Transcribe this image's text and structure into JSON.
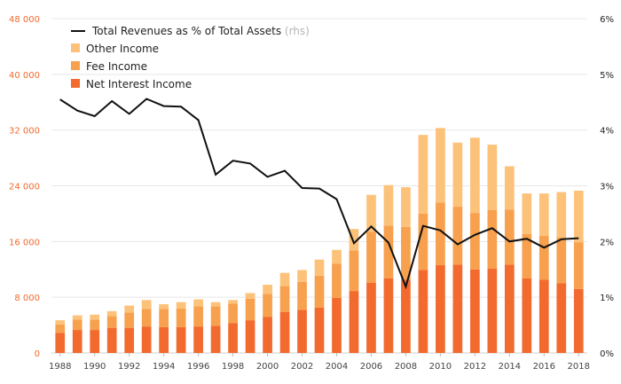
{
  "chart_data": {
    "type": "bar",
    "stacked": true,
    "categories": [
      "1988",
      "1989",
      "1990",
      "1991",
      "1992",
      "1993",
      "1994",
      "1995",
      "1996",
      "1997",
      "1998",
      "1999",
      "2000",
      "2001",
      "2002",
      "2003",
      "2004",
      "2005",
      "2006",
      "2007",
      "2008",
      "2009",
      "2010",
      "2011",
      "2012",
      "2013",
      "2014",
      "2015",
      "2016",
      "2017",
      "2018"
    ],
    "x_tick_labels": [
      "1988",
      "1990",
      "1992",
      "1994",
      "1996",
      "1998",
      "2000",
      "2002",
      "2004",
      "2006",
      "2008",
      "2010",
      "2012",
      "2014",
      "2016",
      "2018"
    ],
    "ylim_left": [
      0,
      48000
    ],
    "left_ticks": [
      0,
      8000,
      16000,
      24000,
      32000,
      40000,
      48000
    ],
    "left_tick_labels": [
      "0",
      "8 000",
      "16 000",
      "24 000",
      "32 000",
      "40 000",
      "48 000"
    ],
    "ylim_right": [
      0,
      6
    ],
    "right_tick_labels": [
      "0%",
      "1%",
      "2%",
      "3%",
      "4%",
      "5%",
      "6%"
    ],
    "grid": true,
    "legend_position": "top-left",
    "series": [
      {
        "name": "Net Interest Income",
        "type": "bar",
        "axis": "left",
        "color": "#f26a2e",
        "values": [
          2900,
          3300,
          3300,
          3600,
          3600,
          3800,
          3700,
          3700,
          3800,
          3900,
          4300,
          4700,
          5200,
          5900,
          6200,
          6500,
          7900,
          8900,
          10100,
          10700,
          10500,
          11900,
          12600,
          12700,
          12000,
          12100,
          12700,
          10700,
          10500,
          10000,
          9200
        ]
      },
      {
        "name": "Fee Income",
        "type": "bar",
        "axis": "left",
        "color": "#f7a04e",
        "values": [
          1200,
          1500,
          1500,
          1700,
          2200,
          2500,
          2600,
          2700,
          2900,
          2800,
          2800,
          3100,
          3300,
          3700,
          4000,
          4600,
          4900,
          5800,
          7300,
          7600,
          7600,
          8100,
          9000,
          8300,
          8100,
          8400,
          7900,
          6400,
          6300,
          6600,
          6700
        ]
      },
      {
        "name": "Other Income",
        "type": "bar",
        "axis": "left",
        "color": "#fcc27a",
        "values": [
          600,
          600,
          700,
          700,
          1000,
          1300,
          700,
          900,
          1000,
          600,
          500,
          800,
          1300,
          1900,
          1700,
          2300,
          2000,
          3100,
          5300,
          5800,
          5700,
          11300,
          10700,
          9200,
          10800,
          9400,
          6200,
          5800,
          6100,
          6500,
          7400
        ]
      },
      {
        "name": "Total Revenues as % of Total Assets",
        "note": "(rhs)",
        "type": "line",
        "axis": "right",
        "color": "#111111",
        "values": [
          4.55,
          4.35,
          4.25,
          4.52,
          4.29,
          4.56,
          4.43,
          4.42,
          4.18,
          3.2,
          3.45,
          3.4,
          3.16,
          3.27,
          2.96,
          2.95,
          2.76,
          1.97,
          2.27,
          1.98,
          1.19,
          2.28,
          2.2,
          1.95,
          2.12,
          2.24,
          2.0,
          2.05,
          1.89,
          2.04,
          2.06
        ]
      }
    ]
  }
}
